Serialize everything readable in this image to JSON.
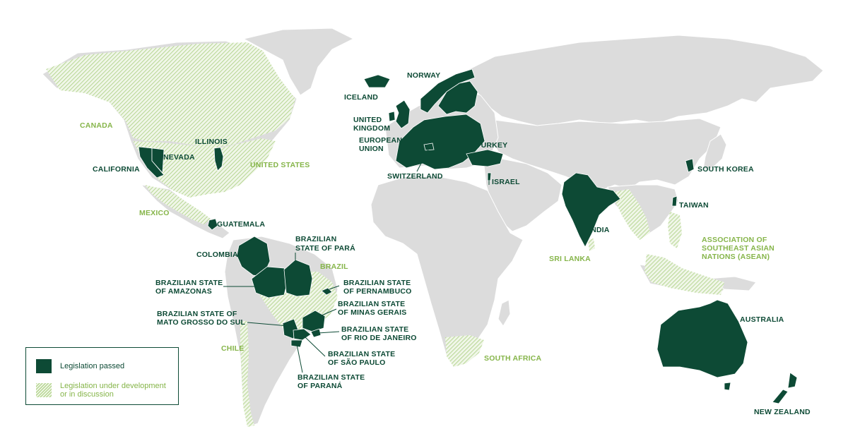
{
  "colors": {
    "passed": "#0d4a35",
    "under_development": "#86b54a",
    "land": "#dcdcdc",
    "background": "#ffffff"
  },
  "legend": {
    "passed_label": "Legislation passed",
    "development_label_line1": "Legislation under development",
    "development_label_line2": "or in discussion"
  },
  "labels": {
    "passed": {
      "norway": "NORWAY",
      "iceland": "ICELAND",
      "uk_1": "UNITED",
      "uk_2": "KINGDOM",
      "eu_1": "EUROPEAN",
      "eu_2": "UNION",
      "switzerland": "SWITZERLAND",
      "turkey": "TURKEY",
      "israel": "ISRAEL",
      "illinois": "ILLINOIS",
      "nevada": "NEVADA",
      "california": "CALIFORNIA",
      "guatemala": "GUATEMALA",
      "colombia": "COLOMBIA",
      "para_1": "BRAZILIAN",
      "para_2": "STATE OF PARÁ",
      "amazonas_1": "BRAZILIAN STATE",
      "amazonas_2": "OF AMAZONAS",
      "pernambuco_1": "BRAZILIAN STATE",
      "pernambuco_2": "OF PERNAMBUCO",
      "minas_1": "BRAZILIAN STATE",
      "minas_2": "OF MINAS GERAIS",
      "matogrosso_1": "BRAZILIAN STATE OF",
      "matogrosso_2": "MATO GROSSO DO SUL",
      "rio_1": "BRAZILIAN STATE",
      "rio_2": "OF RIO DE JANEIRO",
      "saopaulo_1": "BRAZILIAN STATE",
      "saopaulo_2": "OF SÃO PAULO",
      "parana_1": "BRAZILIAN STATE",
      "parana_2": "OF PARANÁ",
      "india": "INDIA",
      "south_korea": "SOUTH KOREA",
      "taiwan": "TAIWAN",
      "australia": "AUSTRALIA",
      "new_zealand": "NEW ZEALAND"
    },
    "development": {
      "canada": "CANADA",
      "united_states": "UNITED STATES",
      "mexico": "MEXICO",
      "brazil": "BRAZIL",
      "chile": "CHILE",
      "sri_lanka": "SRI LANKA",
      "south_africa": "SOUTH AFRICA",
      "asean_1": "ASSOCIATION OF",
      "asean_2": "SOUTHEAST ASIAN",
      "asean_3": "NATIONS (ASEAN)"
    }
  }
}
